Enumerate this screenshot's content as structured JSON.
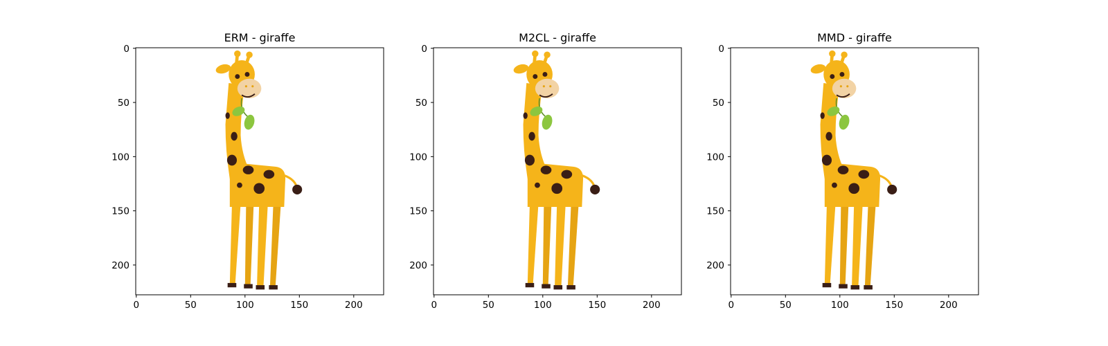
{
  "figure": {
    "panel_count": 3
  },
  "chart_data": [
    {
      "type": "image",
      "title": "ERM - giraffe",
      "xlabel": "",
      "ylabel": "",
      "xlim": [
        -0.5,
        227.5
      ],
      "ylim": [
        227.5,
        -0.5
      ],
      "x_ticks": [
        0,
        50,
        100,
        150,
        200
      ],
      "y_ticks": [
        0,
        50,
        100,
        150,
        200
      ],
      "grid": false,
      "image_content": "giraffe-illustration-icon"
    },
    {
      "type": "image",
      "title": "M2CL - giraffe",
      "xlabel": "",
      "ylabel": "",
      "xlim": [
        -0.5,
        227.5
      ],
      "ylim": [
        227.5,
        -0.5
      ],
      "x_ticks": [
        0,
        50,
        100,
        150,
        200
      ],
      "y_ticks": [
        0,
        50,
        100,
        150,
        200
      ],
      "grid": false,
      "image_content": "giraffe-illustration-icon"
    },
    {
      "type": "image",
      "title": "MMD - giraffe",
      "xlabel": "",
      "ylabel": "",
      "xlim": [
        -0.5,
        227.5
      ],
      "ylim": [
        227.5,
        -0.5
      ],
      "x_ticks": [
        0,
        50,
        100,
        150,
        200
      ],
      "y_ticks": [
        0,
        50,
        100,
        150,
        200
      ],
      "grid": false,
      "image_content": "giraffe-illustration-icon"
    }
  ],
  "colors": {
    "giraffe_body": "#F5B41A",
    "giraffe_spots": "#3A1E16",
    "giraffe_face": "#F2D3A5",
    "leaf": "#8CC63F",
    "axis": "#000000",
    "background": "#FFFFFF"
  }
}
